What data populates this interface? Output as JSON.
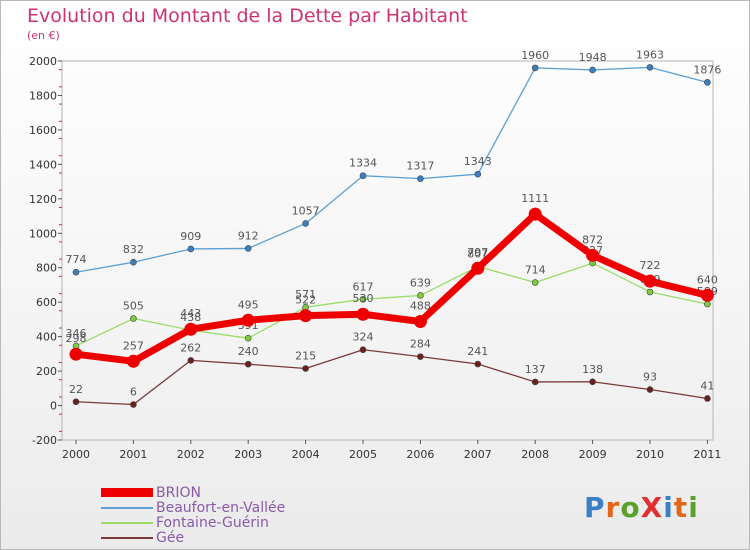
{
  "title": "Evolution du Montant de la Dette par Habitant",
  "unit": "(en €)",
  "logo": "ProXiti",
  "chart_data": {
    "type": "line",
    "categories": [
      "2000",
      "2001",
      "2002",
      "2003",
      "2004",
      "2005",
      "2006",
      "2007",
      "2008",
      "2009",
      "2010",
      "2011"
    ],
    "ylim": [
      -200,
      2000
    ],
    "yticks": [
      -200,
      0,
      200,
      400,
      600,
      800,
      1000,
      1200,
      1400,
      1600,
      1800,
      2000
    ],
    "grid": false,
    "legend_position": "bottom-left",
    "series": [
      {
        "name": "Beaufort-en-Vallée",
        "color": "#5b9fd3",
        "marker": "#3a80c0",
        "width": 1.3,
        "values": [
          774,
          832,
          909,
          912,
          1057,
          1334,
          1317,
          1343,
          1960,
          1948,
          1963,
          1876
        ]
      },
      {
        "name": "Fontaine-Guérin",
        "color": "#99dd66",
        "marker": "#7ccc3c",
        "width": 1.3,
        "values": [
          346,
          505,
          438,
          391,
          571,
          617,
          639,
          807,
          714,
          827,
          659,
          589
        ]
      },
      {
        "name": "Gée",
        "color": "#7a3a3a",
        "marker": "#6b2020",
        "width": 1.3,
        "values": [
          22,
          6,
          262,
          240,
          215,
          324,
          284,
          241,
          137,
          138,
          93,
          41
        ]
      },
      {
        "name": "BRION",
        "color": "#ee0000",
        "marker": "#ee0000",
        "width": 7,
        "values": [
          298,
          257,
          443,
          495,
          522,
          530,
          488,
          797,
          1111,
          872,
          722,
          640
        ]
      }
    ],
    "legend_order": [
      "BRION",
      "Beaufort-en-Vallée",
      "Fontaine-Guérin",
      "Gée"
    ]
  }
}
